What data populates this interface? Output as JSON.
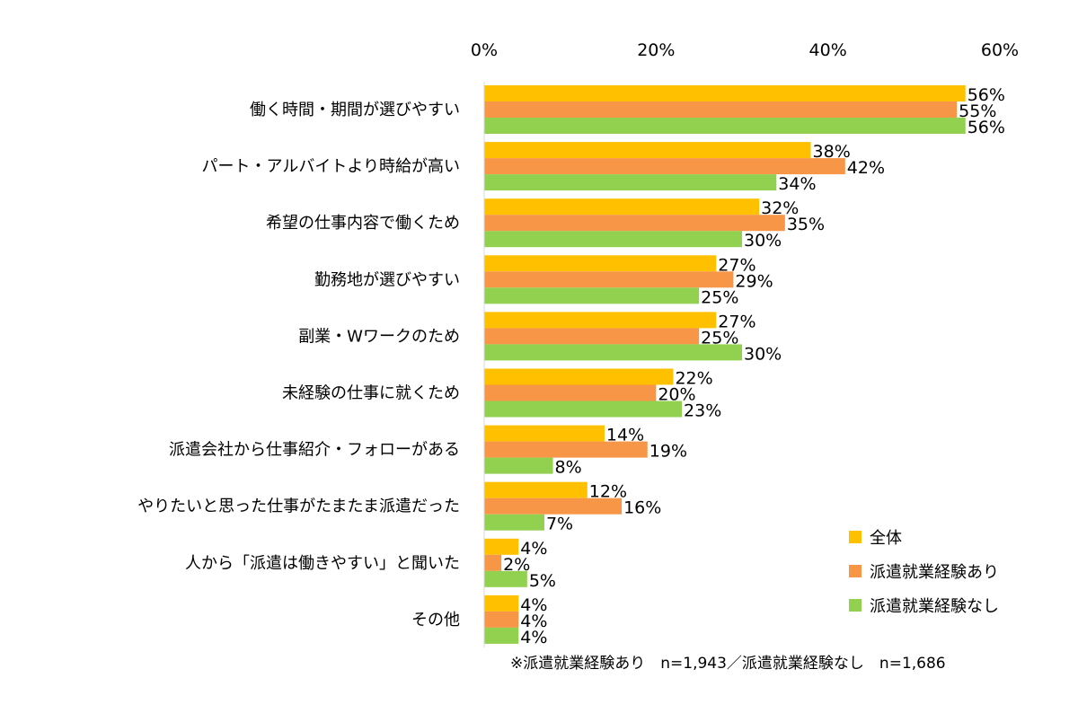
{
  "chart_data": {
    "type": "bar",
    "orientation": "horizontal",
    "categories": [
      "働く時間・期間が選びやすい",
      "パート・アルバイトより時給が高い",
      "希望の仕事内容で働くため",
      "勤務地が選びやすい",
      "副業・Wワークのため",
      "未経験の仕事に就くため",
      "派遣会社から仕事紹介・フォローがある",
      "やりたいと思った仕事がたまたま派遣だった",
      "人から「派遣は働きやすい」と聞いた",
      "その他"
    ],
    "series": [
      {
        "name": "全体",
        "color": "#FFC000",
        "values": [
          56,
          38,
          32,
          27,
          27,
          22,
          14,
          12,
          4,
          4
        ]
      },
      {
        "name": "派遣就業経験あり",
        "color": "#F79646",
        "values": [
          55,
          42,
          35,
          29,
          25,
          20,
          19,
          16,
          2,
          4
        ]
      },
      {
        "name": "派遣就業経験なし",
        "color": "#92D050",
        "values": [
          56,
          34,
          30,
          25,
          30,
          23,
          8,
          7,
          5,
          4
        ]
      }
    ],
    "value_suffix": "%",
    "xlim": [
      0,
      60
    ],
    "x_ticks": [
      "0%",
      "20%",
      "40%",
      "60%"
    ],
    "x_tick_values": [
      0,
      20,
      40,
      60
    ],
    "x_axis_position": "top",
    "legend_position": "bottom-right",
    "grid": false
  },
  "footnote": "※派遣就業経験あり　n=1,943／派遣就業経験なし　n=1,686"
}
